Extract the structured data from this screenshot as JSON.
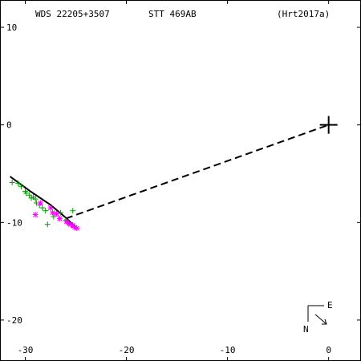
{
  "header": {
    "wds": "WDS 22205+3507",
    "name": "STT 469AB",
    "ref": "(Hrt2017a)"
  },
  "compass": {
    "north": "N",
    "east": "E"
  },
  "chart_data": {
    "type": "scatter",
    "title": "",
    "xlabel": "",
    "ylabel": "",
    "xlim": [
      -32.5,
      3.2
    ],
    "ylim": [
      -24.2,
      12.8
    ],
    "x_ticks": [
      -30,
      -20,
      -10,
      0
    ],
    "y_ticks": [
      10,
      0,
      -10,
      -20
    ],
    "colors": {
      "green": "#009900",
      "magenta": "#ff00ff",
      "axis": "#000000"
    },
    "primary": {
      "x": 0,
      "y": 0,
      "marker": "cross"
    },
    "separation_line": {
      "from": [
        -26,
        -9.6
      ],
      "to": [
        0,
        0
      ],
      "style": "dashed"
    },
    "orbit_line": {
      "points": [
        [
          -31.5,
          -5.3
        ],
        [
          -29.5,
          -6.8
        ],
        [
          -27.5,
          -8.2
        ],
        [
          -26,
          -9.5
        ],
        [
          -25,
          -10.5
        ]
      ],
      "style": "solid"
    },
    "series": [
      {
        "marker": "plus",
        "color": "#009900",
        "points": [
          [
            -31.3,
            -5.9
          ],
          [
            -30.7,
            -6.0
          ],
          [
            -30.4,
            -6.3
          ],
          [
            -30.0,
            -6.8
          ],
          [
            -29.9,
            -7.0
          ],
          [
            -29.6,
            -7.2
          ],
          [
            -29.4,
            -7.5
          ],
          [
            -29.2,
            -7.4
          ],
          [
            -29.0,
            -7.6
          ],
          [
            -28.9,
            -8.0
          ],
          [
            -28.6,
            -8.2
          ],
          [
            -28.3,
            -8.5
          ],
          [
            -28.0,
            -8.8
          ],
          [
            -27.8,
            -10.2
          ],
          [
            -27.2,
            -9.4
          ],
          [
            -26.5,
            -9.0
          ],
          [
            -26.0,
            -9.8
          ],
          [
            -25.8,
            -10.0
          ],
          [
            -25.4,
            -10.3
          ],
          [
            -25.1,
            -10.5
          ],
          [
            -25.3,
            -8.8
          ]
        ]
      },
      {
        "marker": "star",
        "color": "#ff00ff",
        "points": [
          [
            -29.0,
            -9.2
          ],
          [
            -28.5,
            -8.0
          ],
          [
            -27.5,
            -8.5
          ],
          [
            -27.3,
            -9.0
          ],
          [
            -26.9,
            -9.1
          ],
          [
            -26.6,
            -9.6
          ],
          [
            -25.9,
            -9.9
          ],
          [
            -25.7,
            -10.1
          ],
          [
            -25.5,
            -10.2
          ],
          [
            -25.3,
            -10.3
          ],
          [
            -25.1,
            -10.5
          ],
          [
            -24.9,
            -10.6
          ]
        ]
      }
    ]
  }
}
